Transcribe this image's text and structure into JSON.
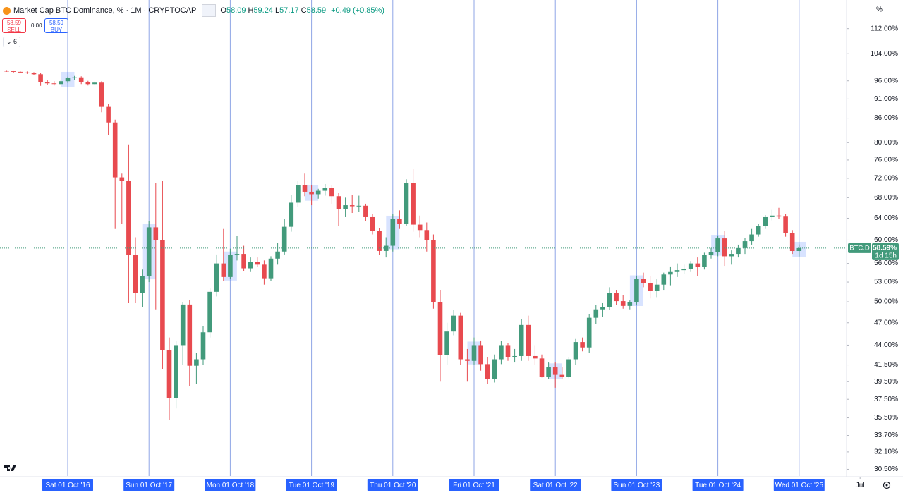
{
  "header": {
    "title": "Market Cap BTC Dominance, % · 1M · CRYPTOCAP",
    "ohlc_prefixes": [
      "O",
      "H",
      "L",
      "C"
    ],
    "change": "+0.49 (+0.85%)",
    "sell": "SELL",
    "buy": "BUY",
    "spread": "0.00",
    "indicators_count": "6",
    "scale_unit": "%"
  },
  "chart_data": {
    "type": "candlestick",
    "x": [
      "2016-01",
      "2016-02",
      "2016-03",
      "2016-04",
      "2016-05",
      "2016-06",
      "2016-07",
      "2016-08",
      "2016-09",
      "2016-10",
      "2016-11",
      "2016-12",
      "2017-01",
      "2017-02",
      "2017-03",
      "2017-04",
      "2017-05",
      "2017-06",
      "2017-07",
      "2017-08",
      "2017-09",
      "2017-10",
      "2017-11",
      "2017-12",
      "2018-01",
      "2018-02",
      "2018-03",
      "2018-04",
      "2018-05",
      "2018-06",
      "2018-07",
      "2018-08",
      "2018-09",
      "2018-10",
      "2018-11",
      "2018-12",
      "2019-01",
      "2019-02",
      "2019-03",
      "2019-04",
      "2019-05",
      "2019-06",
      "2019-07",
      "2019-08",
      "2019-09",
      "2019-10",
      "2019-11",
      "2019-12",
      "2020-01",
      "2020-02",
      "2020-03",
      "2020-04",
      "2020-05",
      "2020-06",
      "2020-07",
      "2020-08",
      "2020-09",
      "2020-10",
      "2020-11",
      "2020-12",
      "2021-01",
      "2021-02",
      "2021-03",
      "2021-04",
      "2021-05",
      "2021-06",
      "2021-07",
      "2021-08",
      "2021-09",
      "2021-10",
      "2021-11",
      "2021-12",
      "2022-01",
      "2022-02",
      "2022-03",
      "2022-04",
      "2022-05",
      "2022-06",
      "2022-07",
      "2022-08",
      "2022-09",
      "2022-10",
      "2022-11",
      "2022-12",
      "2023-01",
      "2023-02",
      "2023-03",
      "2023-04",
      "2023-05",
      "2023-06",
      "2023-07",
      "2023-08",
      "2023-09",
      "2023-10",
      "2023-11",
      "2023-12",
      "2024-01",
      "2024-02",
      "2024-03",
      "2024-04",
      "2024-05",
      "2024-06",
      "2024-07",
      "2024-08",
      "2024-09",
      "2024-10",
      "2024-11",
      "2024-12",
      "2025-01",
      "2025-02",
      "2025-03",
      "2025-04",
      "2025-05",
      "2025-06",
      "2025-07",
      "2025-08",
      "2025-09",
      "2025-10"
    ],
    "open": [
      98.9,
      98.8,
      98.6,
      98.4,
      98.2,
      97.9,
      95.6,
      95.3,
      95.1,
      95.9,
      96.8,
      97.0,
      95.6,
      95.1,
      95.5,
      88.9,
      84.9,
      72.2,
      71.4,
      57.4,
      51.3,
      54.0,
      62.3,
      60.0,
      43.4,
      37.6,
      44.0,
      49.6,
      41.4,
      42.2,
      45.7,
      51.5,
      56.0,
      53.8,
      57.4,
      57.6,
      55.2,
      56.3,
      55.8,
      53.6,
      56.8,
      58.0,
      62.4,
      67.0,
      70.6,
      69.2,
      68.7,
      69.4,
      70.0,
      68.3,
      65.8,
      66.5,
      66.3,
      66.4,
      64.2,
      61.6,
      58.1,
      59.0,
      63.8,
      63.0,
      71.0,
      62.8,
      61.8,
      60.0,
      50.0,
      42.7,
      45.8,
      48.0,
      42.2,
      42.0,
      44.0,
      41.6,
      39.8,
      42.2,
      44.0,
      42.5,
      42.6,
      46.7,
      42.6,
      42.3,
      40.1,
      41.2,
      40.3,
      40.1,
      42.2,
      44.4,
      43.7,
      47.7,
      48.9,
      49.2,
      51.3,
      50.1,
      49.4,
      49.9,
      53.5,
      52.8,
      51.6,
      52.6,
      54.2,
      54.6,
      54.9,
      55.1,
      56.0,
      55.4,
      57.4,
      57.9,
      60.3,
      57.2,
      57.6,
      58.6,
      59.8,
      61.0,
      62.6,
      64.2,
      64.5,
      64.3,
      61.2,
      58.09
    ],
    "high": [
      99.1,
      99.0,
      98.9,
      98.7,
      98.5,
      98.2,
      96.2,
      95.9,
      96.3,
      97.2,
      97.4,
      97.3,
      96.0,
      95.8,
      95.9,
      89.6,
      85.6,
      73.0,
      79.6,
      60.5,
      55.0,
      63.5,
      71.0,
      71.5,
      45.0,
      44.5,
      50.0,
      50.3,
      43.0,
      46.5,
      52.0,
      57.5,
      62.0,
      58.5,
      60.8,
      59.0,
      57.0,
      57.0,
      56.5,
      57.2,
      59.5,
      63.8,
      68.5,
      71.5,
      73.0,
      70.5,
      69.8,
      70.8,
      70.6,
      68.9,
      68.0,
      68.5,
      68.4,
      66.8,
      64.8,
      62.2,
      60.5,
      64.8,
      65.5,
      71.8,
      74.0,
      64.5,
      63.2,
      61.0,
      51.8,
      47.0,
      48.8,
      48.4,
      43.5,
      45.0,
      44.6,
      42.5,
      42.8,
      44.5,
      44.3,
      43.5,
      47.5,
      48.0,
      44.0,
      42.8,
      41.8,
      41.8,
      41.2,
      42.5,
      44.8,
      45.0,
      48.2,
      49.5,
      49.8,
      52.2,
      51.8,
      51.0,
      50.2,
      54.0,
      54.5,
      54.0,
      53.5,
      54.5,
      55.5,
      56.0,
      55.8,
      56.4,
      57.0,
      57.8,
      58.6,
      60.8,
      61.6,
      58.2,
      59.2,
      60.4,
      62.0,
      63.0,
      64.6,
      65.6,
      66.0,
      64.8,
      61.8,
      59.24
    ],
    "low": [
      98.6,
      98.4,
      98.2,
      98.0,
      97.6,
      94.6,
      94.8,
      94.7,
      94.9,
      95.4,
      96.2,
      95.1,
      94.7,
      94.8,
      87.5,
      81.8,
      62.0,
      63.0,
      49.8,
      49.8,
      49.2,
      53.0,
      48.9,
      41.0,
      35.3,
      36.5,
      41.5,
      39.0,
      39.2,
      41.5,
      45.0,
      50.8,
      53.2,
      53.5,
      56.5,
      54.8,
      54.6,
      55.4,
      52.6,
      53.2,
      55.8,
      57.5,
      61.5,
      66.2,
      68.3,
      66.5,
      67.8,
      68.4,
      66.8,
      62.6,
      64.2,
      65.0,
      65.2,
      63.5,
      61.0,
      57.4,
      57.0,
      58.0,
      62.0,
      62.5,
      61.5,
      60.5,
      58.0,
      49.0,
      39.5,
      41.5,
      45.3,
      41.5,
      39.5,
      41.5,
      40.8,
      39.2,
      39.4,
      41.6,
      42.0,
      41.8,
      42.0,
      42.0,
      41.5,
      40.0,
      39.8,
      38.8,
      39.8,
      39.9,
      41.5,
      43.2,
      43.0,
      46.8,
      47.8,
      48.8,
      49.5,
      49.0,
      48.9,
      49.6,
      52.2,
      50.5,
      50.7,
      51.8,
      52.5,
      53.8,
      54.3,
      54.6,
      54.0,
      55.0,
      56.8,
      57.2,
      55.6,
      55.8,
      57.0,
      57.6,
      59.2,
      60.6,
      62.0,
      63.6,
      63.8,
      60.6,
      57.6,
      57.17
    ],
    "close": [
      98.8,
      98.6,
      98.4,
      98.2,
      97.9,
      95.6,
      95.3,
      95.1,
      95.9,
      96.8,
      97.0,
      95.6,
      95.1,
      95.5,
      88.9,
      84.9,
      72.2,
      71.4,
      57.4,
      51.3,
      54.0,
      62.3,
      60.0,
      43.4,
      37.6,
      44.0,
      49.6,
      41.4,
      42.2,
      45.7,
      51.5,
      56.0,
      53.8,
      57.4,
      57.6,
      55.2,
      56.3,
      55.8,
      53.6,
      56.8,
      58.0,
      62.4,
      67.0,
      70.6,
      69.2,
      68.7,
      69.4,
      70.0,
      68.3,
      65.8,
      66.5,
      66.3,
      66.4,
      64.2,
      61.6,
      58.1,
      59.0,
      63.8,
      63.0,
      71.0,
      62.8,
      61.8,
      60.0,
      50.0,
      42.7,
      45.8,
      48.0,
      42.2,
      42.0,
      44.0,
      41.6,
      39.8,
      42.2,
      44.0,
      42.5,
      42.6,
      46.7,
      42.6,
      42.3,
      40.1,
      41.2,
      40.3,
      40.1,
      42.2,
      44.4,
      43.7,
      47.7,
      48.9,
      49.2,
      51.3,
      50.1,
      49.4,
      49.9,
      53.5,
      52.8,
      51.6,
      52.6,
      54.2,
      54.6,
      54.9,
      55.1,
      56.0,
      55.4,
      57.4,
      57.9,
      60.3,
      57.2,
      57.6,
      58.6,
      59.8,
      61.0,
      62.6,
      64.2,
      64.5,
      64.3,
      61.2,
      58.09,
      58.59
    ],
    "up_color": "#429a7b",
    "down_color": "#e84a4f",
    "log_scale": true,
    "ylim": [
      29.9,
      121.9
    ],
    "yticks": [
      {
        "value": 112,
        "label": "112.00%"
      },
      {
        "value": 104,
        "label": "104.00%"
      },
      {
        "value": 96,
        "label": "96.00%"
      },
      {
        "value": 91,
        "label": "91.00%"
      },
      {
        "value": 86,
        "label": "86.00%"
      },
      {
        "value": 80,
        "label": "80.00%"
      },
      {
        "value": 76,
        "label": "76.00%"
      },
      {
        "value": 72,
        "label": "72.00%"
      },
      {
        "value": 68,
        "label": "68.00%"
      },
      {
        "value": 64,
        "label": "64.00%"
      },
      {
        "value": 60,
        "label": "60.00%"
      },
      {
        "value": 56,
        "label": "56.00%"
      },
      {
        "value": 53,
        "label": "53.00%"
      },
      {
        "value": 50,
        "label": "50.00%"
      },
      {
        "value": 47,
        "label": "47.00%"
      },
      {
        "value": 44,
        "label": "44.00%"
      },
      {
        "value": 41.5,
        "label": "41.50%"
      },
      {
        "value": 39.5,
        "label": "39.50%"
      },
      {
        "value": 37.5,
        "label": "37.50%"
      },
      {
        "value": 35.5,
        "label": "35.50%"
      },
      {
        "value": 33.7,
        "label": "33.70%"
      },
      {
        "value": 32.1,
        "label": "32.10%"
      },
      {
        "value": 30.5,
        "label": "30.50%"
      }
    ],
    "xlim": [
      "2015-12",
      "2026-05"
    ],
    "xticks": [
      {
        "value": "2016-10",
        "label": "Sat 01 Oct '16"
      },
      {
        "value": "2017-10",
        "label": "Sun 01 Oct '17"
      },
      {
        "value": "2018-10",
        "label": "Mon 01 Oct '18"
      },
      {
        "value": "2019-10",
        "label": "Tue 01 Oct '19"
      },
      {
        "value": "2020-10",
        "label": "Thu 01 Oct '20"
      },
      {
        "value": "2021-10",
        "label": "Fri 01 Oct '21"
      },
      {
        "value": "2022-10",
        "label": "Sat 01 Oct '22"
      },
      {
        "value": "2023-10",
        "label": "Sun 01 Oct '23"
      },
      {
        "value": "2024-10",
        "label": "Tue 01 Oct '24"
      },
      {
        "value": "2025-10",
        "label": "Wed 01 Oct '25"
      },
      {
        "value": "2026-07",
        "label": "Jul"
      }
    ],
    "symbol_label": "BTC.D",
    "last_price_label": "58.59%",
    "countdown": "1d 15h"
  }
}
